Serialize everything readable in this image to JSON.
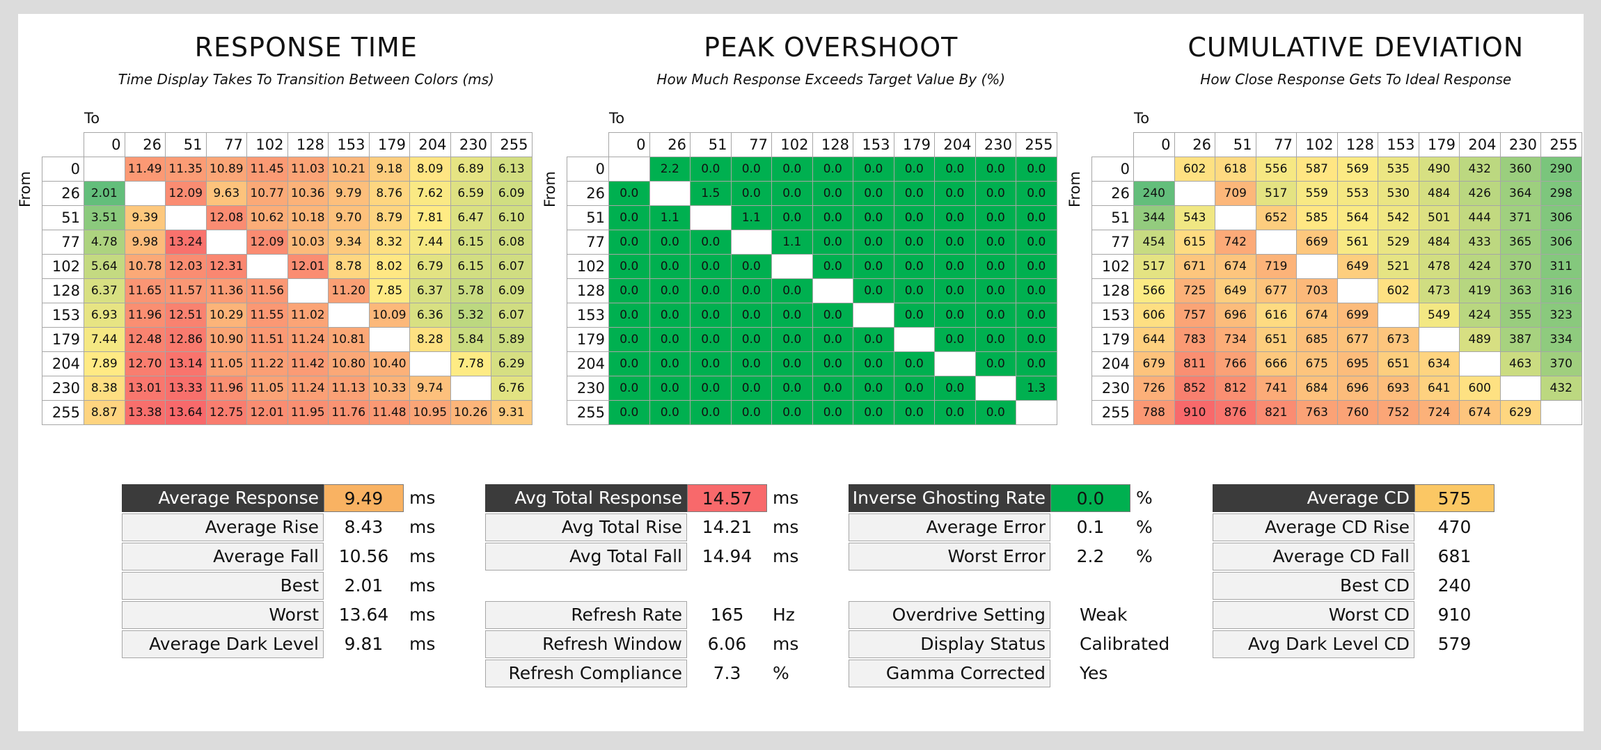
{
  "chart_data": [
    {
      "type": "heatmap",
      "title": "RESPONSE TIME",
      "subtitle": "Time Display Takes To Transition Between Colors (ms)",
      "xlabel": "To",
      "ylabel": "From",
      "levels": [
        0,
        26,
        51,
        77,
        102,
        128,
        153,
        179,
        204,
        230,
        255
      ],
      "values": [
        [
          "",
          "11.49",
          "11.35",
          "10.89",
          "11.45",
          "11.03",
          "10.21",
          "9.18",
          "8.09",
          "6.89",
          "6.13"
        ],
        [
          "2.01",
          "",
          "12.09",
          "9.63",
          "10.77",
          "10.36",
          "9.79",
          "8.76",
          "7.62",
          "6.59",
          "6.09"
        ],
        [
          "3.51",
          "9.39",
          "",
          "12.08",
          "10.62",
          "10.18",
          "9.70",
          "8.79",
          "7.81",
          "6.47",
          "6.10"
        ],
        [
          "4.78",
          "9.98",
          "13.24",
          "",
          "12.09",
          "10.03",
          "9.34",
          "8.32",
          "7.44",
          "6.15",
          "6.08"
        ],
        [
          "5.64",
          "10.78",
          "12.03",
          "12.31",
          "",
          "12.01",
          "8.78",
          "8.02",
          "6.79",
          "6.15",
          "6.07"
        ],
        [
          "6.37",
          "11.65",
          "11.57",
          "11.36",
          "11.56",
          "",
          "11.20",
          "7.85",
          "6.37",
          "5.78",
          "6.09"
        ],
        [
          "6.93",
          "11.96",
          "12.51",
          "10.29",
          "11.55",
          "11.02",
          "",
          "10.09",
          "6.36",
          "5.32",
          "6.07"
        ],
        [
          "7.44",
          "12.48",
          "12.86",
          "10.90",
          "11.51",
          "11.24",
          "10.81",
          "",
          "8.28",
          "5.84",
          "5.89"
        ],
        [
          "7.89",
          "12.70",
          "13.14",
          "11.05",
          "11.22",
          "11.42",
          "10.80",
          "10.40",
          "",
          "7.78",
          "6.29"
        ],
        [
          "8.38",
          "13.01",
          "13.33",
          "11.96",
          "11.05",
          "11.24",
          "11.13",
          "10.33",
          "9.74",
          "",
          "6.76"
        ],
        [
          "8.87",
          "13.38",
          "13.64",
          "12.75",
          "12.01",
          "11.95",
          "11.76",
          "11.48",
          "10.95",
          "10.26",
          "9.31"
        ]
      ]
    },
    {
      "type": "heatmap",
      "title": "PEAK OVERSHOOT",
      "subtitle": "How Much Response Exceeds Target Value By (%)",
      "xlabel": "To",
      "ylabel": "From",
      "levels": [
        0,
        26,
        51,
        77,
        102,
        128,
        153,
        179,
        204,
        230,
        255
      ],
      "values": [
        [
          "",
          "2.2",
          "0.0",
          "0.0",
          "0.0",
          "0.0",
          "0.0",
          "0.0",
          "0.0",
          "0.0",
          "0.0"
        ],
        [
          "0.0",
          "",
          "1.5",
          "0.0",
          "0.0",
          "0.0",
          "0.0",
          "0.0",
          "0.0",
          "0.0",
          "0.0"
        ],
        [
          "0.0",
          "1.1",
          "",
          "1.1",
          "0.0",
          "0.0",
          "0.0",
          "0.0",
          "0.0",
          "0.0",
          "0.0"
        ],
        [
          "0.0",
          "0.0",
          "0.0",
          "",
          "1.1",
          "0.0",
          "0.0",
          "0.0",
          "0.0",
          "0.0",
          "0.0"
        ],
        [
          "0.0",
          "0.0",
          "0.0",
          "0.0",
          "",
          "0.0",
          "0.0",
          "0.0",
          "0.0",
          "0.0",
          "0.0"
        ],
        [
          "0.0",
          "0.0",
          "0.0",
          "0.0",
          "0.0",
          "",
          "0.0",
          "0.0",
          "0.0",
          "0.0",
          "0.0"
        ],
        [
          "0.0",
          "0.0",
          "0.0",
          "0.0",
          "0.0",
          "0.0",
          "",
          "0.0",
          "0.0",
          "0.0",
          "0.0"
        ],
        [
          "0.0",
          "0.0",
          "0.0",
          "0.0",
          "0.0",
          "0.0",
          "0.0",
          "",
          "0.0",
          "0.0",
          "0.0"
        ],
        [
          "0.0",
          "0.0",
          "0.0",
          "0.0",
          "0.0",
          "0.0",
          "0.0",
          "0.0",
          "",
          "0.0",
          "0.0"
        ],
        [
          "0.0",
          "0.0",
          "0.0",
          "0.0",
          "0.0",
          "0.0",
          "0.0",
          "0.0",
          "0.0",
          "",
          "1.3"
        ],
        [
          "0.0",
          "0.0",
          "0.0",
          "0.0",
          "0.0",
          "0.0",
          "0.0",
          "0.0",
          "0.0",
          "0.0",
          ""
        ]
      ]
    },
    {
      "type": "heatmap",
      "title": "CUMULATIVE DEVIATION",
      "subtitle": "How Close Response Gets To Ideal Response",
      "xlabel": "To",
      "ylabel": "From",
      "levels": [
        0,
        26,
        51,
        77,
        102,
        128,
        153,
        179,
        204,
        230,
        255
      ],
      "values": [
        [
          "",
          "602",
          "618",
          "556",
          "587",
          "569",
          "535",
          "490",
          "432",
          "360",
          "290"
        ],
        [
          "240",
          "",
          "709",
          "517",
          "559",
          "553",
          "530",
          "484",
          "426",
          "364",
          "298"
        ],
        [
          "344",
          "543",
          "",
          "652",
          "585",
          "564",
          "542",
          "501",
          "444",
          "371",
          "306"
        ],
        [
          "454",
          "615",
          "742",
          "",
          "669",
          "561",
          "529",
          "484",
          "433",
          "365",
          "306"
        ],
        [
          "517",
          "671",
          "674",
          "719",
          "",
          "649",
          "521",
          "478",
          "424",
          "370",
          "311"
        ],
        [
          "566",
          "725",
          "649",
          "677",
          "703",
          "",
          "602",
          "473",
          "419",
          "363",
          "316"
        ],
        [
          "606",
          "757",
          "696",
          "616",
          "674",
          "699",
          "",
          "549",
          "424",
          "355",
          "323"
        ],
        [
          "644",
          "783",
          "734",
          "651",
          "685",
          "677",
          "673",
          "",
          "489",
          "387",
          "334"
        ],
        [
          "679",
          "811",
          "766",
          "666",
          "675",
          "695",
          "651",
          "634",
          "",
          "463",
          "370"
        ],
        [
          "726",
          "852",
          "812",
          "741",
          "684",
          "696",
          "693",
          "641",
          "600",
          "",
          "432"
        ],
        [
          "788",
          "910",
          "876",
          "821",
          "763",
          "760",
          "752",
          "724",
          "674",
          "629",
          ""
        ]
      ]
    }
  ],
  "stats": {
    "response": [
      {
        "label": "Average Response",
        "value": "9.49",
        "unit": "ms"
      },
      {
        "label": "Average Rise",
        "value": "8.43",
        "unit": "ms"
      },
      {
        "label": "Average Fall",
        "value": "10.56",
        "unit": "ms"
      },
      {
        "label": "Best",
        "value": "2.01",
        "unit": "ms"
      },
      {
        "label": "Worst",
        "value": "13.64",
        "unit": "ms"
      },
      {
        "label": "Average Dark Level",
        "value": "9.81",
        "unit": "ms"
      }
    ],
    "total": [
      {
        "label": "Avg Total Response",
        "value": "14.57",
        "unit": "ms"
      },
      {
        "label": "Avg Total Rise",
        "value": "14.21",
        "unit": "ms"
      },
      {
        "label": "Avg Total Fall",
        "value": "14.94",
        "unit": "ms"
      }
    ],
    "refresh": [
      {
        "label": "Refresh Rate",
        "value": "165",
        "unit": "Hz"
      },
      {
        "label": "Refresh Window",
        "value": "6.06",
        "unit": "ms"
      },
      {
        "label": "Refresh Compliance",
        "value": "7.3",
        "unit": "%"
      }
    ],
    "ghost": [
      {
        "label": "Inverse Ghosting Rate",
        "value": "0.0",
        "unit": "%"
      },
      {
        "label": "Average Error",
        "value": "0.1",
        "unit": "%"
      },
      {
        "label": "Worst Error",
        "value": "2.2",
        "unit": "%"
      }
    ],
    "settings": [
      {
        "label": "Overdrive Setting",
        "value": "Weak"
      },
      {
        "label": "Display Status",
        "value": "Calibrated"
      },
      {
        "label": "Gamma Corrected",
        "value": "Yes"
      }
    ],
    "cd": [
      {
        "label": "Average CD",
        "value": "575"
      },
      {
        "label": "Average CD Rise",
        "value": "470"
      },
      {
        "label": "Average CD Fall",
        "value": "681"
      },
      {
        "label": "Best CD",
        "value": "240"
      },
      {
        "label": "Worst CD",
        "value": "910"
      },
      {
        "label": "Avg Dark Level CD",
        "value": "579"
      }
    ]
  },
  "colors": {
    "good": "#63be7b",
    "mid": "#ffeb84",
    "bad": "#f8696b",
    "green_cell": "#00b050",
    "header_dark": "#3b3b3b",
    "avg_response_fill": "#f9b262",
    "avg_total_fill": "#f8696b",
    "ghost_fill": "#00b050",
    "avg_cd_fill": "#fbc764"
  }
}
